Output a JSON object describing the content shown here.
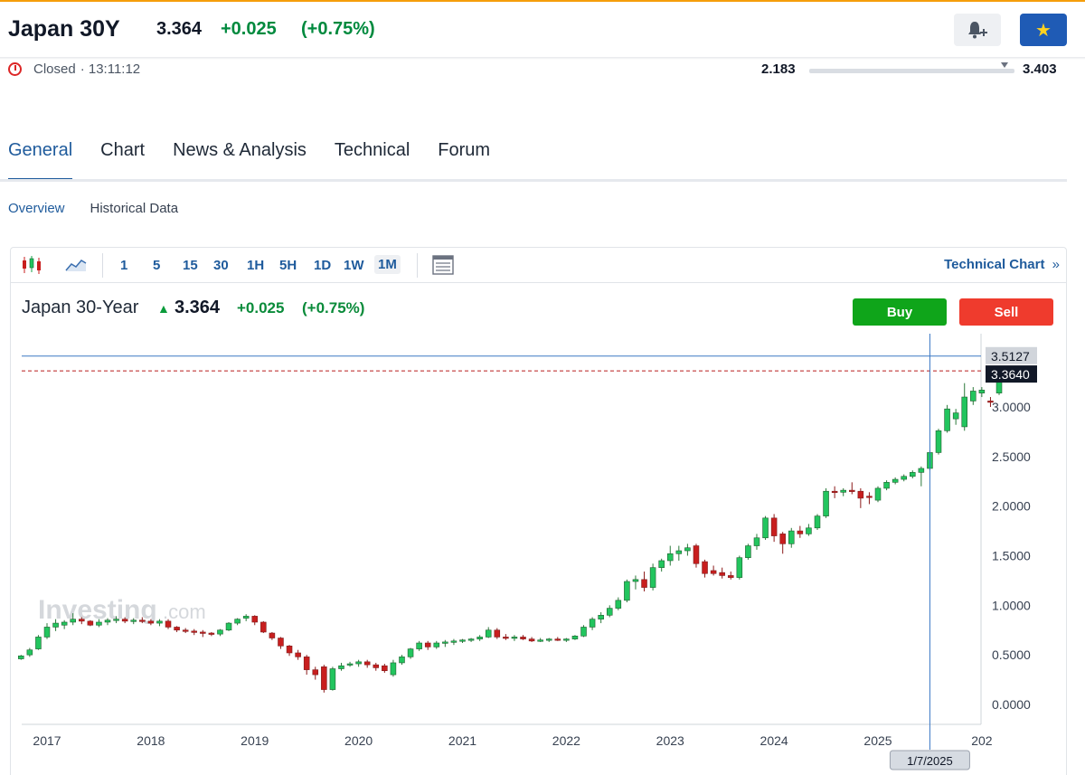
{
  "instrument": {
    "title": "Japan 30Y",
    "price": "3.364",
    "change": "+0.025",
    "change_pct": "(+0.75%)",
    "status": "Closed",
    "time": "· 13:11:12",
    "range_low": "2.183",
    "range_high": "3.403",
    "range_position": 0.95,
    "accent_color": "#1f5b9c",
    "positive_color": "#008a3e"
  },
  "header_buttons": {
    "alert_icon": "bell-plus-icon",
    "watchlist_icon": "star-icon"
  },
  "tabs": [
    {
      "label": "General",
      "active": true
    },
    {
      "label": "Chart",
      "active": false
    },
    {
      "label": "News & Analysis",
      "active": false
    },
    {
      "label": "Technical",
      "active": false
    },
    {
      "label": "Forum",
      "active": false
    }
  ],
  "subtabs": [
    {
      "label": "Overview",
      "active": true
    },
    {
      "label": "Historical Data",
      "active": false
    }
  ],
  "toolbar": {
    "intervals": [
      "1",
      "5",
      "15",
      "30",
      "1H",
      "5H",
      "1D",
      "1W",
      "1M"
    ],
    "active_interval": "1M",
    "tech_link": "Technical Chart",
    "tech_link_chevron": "»"
  },
  "chart_header": {
    "name": "Japan 30-Year",
    "arrow": "▲",
    "price": "3.364",
    "change": "+0.025",
    "change_pct": "(+0.75%)",
    "buy_label": "Buy",
    "sell_label": "Sell"
  },
  "chart_data": {
    "type": "candlestick",
    "interval": "1M",
    "watermark": "Investing.com",
    "x_ticks": [
      "2017",
      "2018",
      "2019",
      "2020",
      "2021",
      "2022",
      "2023",
      "2024",
      "2025",
      "202"
    ],
    "y_ticks": [
      "0.0000",
      "0.5000",
      "1.0000",
      "1.5000",
      "2.0000",
      "2.5000",
      "3.0000"
    ],
    "ylim": [
      -0.2,
      3.55
    ],
    "crosshair_value": "3.5127",
    "last_price_label": "3.3640",
    "last_price": 3.364,
    "crosshair_date": "1/7/2025",
    "up_color": "#22c55e",
    "down_color": "#c81e1e",
    "start": "2016-10",
    "ohlc": [
      [
        0.46,
        0.5,
        0.45,
        0.49
      ],
      [
        0.5,
        0.57,
        0.48,
        0.55
      ],
      [
        0.56,
        0.7,
        0.55,
        0.68
      ],
      [
        0.68,
        0.82,
        0.66,
        0.78
      ],
      [
        0.78,
        0.86,
        0.74,
        0.82
      ],
      [
        0.8,
        0.85,
        0.76,
        0.83
      ],
      [
        0.83,
        0.92,
        0.8,
        0.86
      ],
      [
        0.86,
        0.88,
        0.81,
        0.84
      ],
      [
        0.84,
        0.85,
        0.79,
        0.8
      ],
      [
        0.8,
        0.86,
        0.78,
        0.83
      ],
      [
        0.83,
        0.87,
        0.8,
        0.85
      ],
      [
        0.85,
        0.89,
        0.82,
        0.86
      ],
      [
        0.86,
        0.88,
        0.82,
        0.84
      ],
      [
        0.84,
        0.87,
        0.81,
        0.85
      ],
      [
        0.85,
        0.88,
        0.82,
        0.84
      ],
      [
        0.84,
        0.86,
        0.8,
        0.82
      ],
      [
        0.82,
        0.86,
        0.79,
        0.84
      ],
      [
        0.84,
        0.86,
        0.76,
        0.78
      ],
      [
        0.78,
        0.79,
        0.73,
        0.75
      ],
      [
        0.75,
        0.77,
        0.72,
        0.74
      ],
      [
        0.74,
        0.76,
        0.7,
        0.73
      ],
      [
        0.73,
        0.75,
        0.68,
        0.72
      ],
      [
        0.72,
        0.73,
        0.69,
        0.71
      ],
      [
        0.71,
        0.76,
        0.69,
        0.75
      ],
      [
        0.75,
        0.83,
        0.74,
        0.82
      ],
      [
        0.82,
        0.87,
        0.8,
        0.86
      ],
      [
        0.87,
        0.91,
        0.84,
        0.89
      ],
      [
        0.89,
        0.9,
        0.8,
        0.83
      ],
      [
        0.83,
        0.84,
        0.72,
        0.73
      ],
      [
        0.72,
        0.73,
        0.65,
        0.67
      ],
      [
        0.67,
        0.68,
        0.56,
        0.59
      ],
      [
        0.59,
        0.6,
        0.49,
        0.52
      ],
      [
        0.52,
        0.55,
        0.45,
        0.48
      ],
      [
        0.48,
        0.5,
        0.3,
        0.35
      ],
      [
        0.35,
        0.38,
        0.25,
        0.3
      ],
      [
        0.38,
        0.4,
        0.12,
        0.15
      ],
      [
        0.15,
        0.38,
        0.14,
        0.36
      ],
      [
        0.36,
        0.42,
        0.34,
        0.39
      ],
      [
        0.4,
        0.43,
        0.38,
        0.41
      ],
      [
        0.41,
        0.45,
        0.38,
        0.43
      ],
      [
        0.43,
        0.45,
        0.37,
        0.4
      ],
      [
        0.4,
        0.42,
        0.34,
        0.37
      ],
      [
        0.39,
        0.41,
        0.32,
        0.34
      ],
      [
        0.3,
        0.45,
        0.28,
        0.42
      ],
      [
        0.42,
        0.5,
        0.4,
        0.48
      ],
      [
        0.48,
        0.57,
        0.46,
        0.56
      ],
      [
        0.56,
        0.64,
        0.54,
        0.62
      ],
      [
        0.62,
        0.64,
        0.55,
        0.58
      ],
      [
        0.58,
        0.64,
        0.56,
        0.62
      ],
      [
        0.62,
        0.65,
        0.58,
        0.63
      ],
      [
        0.63,
        0.66,
        0.6,
        0.64
      ],
      [
        0.64,
        0.66,
        0.62,
        0.65
      ],
      [
        0.65,
        0.67,
        0.63,
        0.66
      ],
      [
        0.66,
        0.7,
        0.64,
        0.68
      ],
      [
        0.68,
        0.78,
        0.67,
        0.75
      ],
      [
        0.75,
        0.77,
        0.66,
        0.68
      ],
      [
        0.68,
        0.71,
        0.65,
        0.67
      ],
      [
        0.67,
        0.7,
        0.64,
        0.68
      ],
      [
        0.68,
        0.7,
        0.65,
        0.66
      ],
      [
        0.66,
        0.68,
        0.63,
        0.64
      ],
      [
        0.65,
        0.67,
        0.63,
        0.65
      ],
      [
        0.65,
        0.67,
        0.63,
        0.66
      ],
      [
        0.66,
        0.68,
        0.64,
        0.65
      ],
      [
        0.65,
        0.67,
        0.63,
        0.66
      ],
      [
        0.66,
        0.7,
        0.65,
        0.69
      ],
      [
        0.69,
        0.8,
        0.68,
        0.78
      ],
      [
        0.78,
        0.88,
        0.75,
        0.86
      ],
      [
        0.86,
        0.93,
        0.82,
        0.9
      ],
      [
        0.9,
        1.0,
        0.88,
        0.97
      ],
      [
        0.97,
        1.08,
        0.95,
        1.05
      ],
      [
        1.05,
        1.26,
        1.03,
        1.24
      ],
      [
        1.24,
        1.3,
        1.16,
        1.26
      ],
      [
        1.26,
        1.34,
        1.14,
        1.18
      ],
      [
        1.18,
        1.42,
        1.15,
        1.38
      ],
      [
        1.38,
        1.47,
        1.34,
        1.45
      ],
      [
        1.45,
        1.6,
        1.4,
        1.52
      ],
      [
        1.52,
        1.6,
        1.45,
        1.55
      ],
      [
        1.55,
        1.62,
        1.5,
        1.58
      ],
      [
        1.6,
        1.62,
        1.38,
        1.42
      ],
      [
        1.44,
        1.46,
        1.28,
        1.32
      ],
      [
        1.35,
        1.4,
        1.3,
        1.32
      ],
      [
        1.33,
        1.38,
        1.27,
        1.3
      ],
      [
        1.3,
        1.34,
        1.26,
        1.28
      ],
      [
        1.28,
        1.5,
        1.26,
        1.48
      ],
      [
        1.48,
        1.62,
        1.46,
        1.6
      ],
      [
        1.6,
        1.72,
        1.56,
        1.68
      ],
      [
        1.68,
        1.9,
        1.66,
        1.88
      ],
      [
        1.88,
        1.92,
        1.64,
        1.7
      ],
      [
        1.72,
        1.74,
        1.52,
        1.62
      ],
      [
        1.62,
        1.78,
        1.58,
        1.75
      ],
      [
        1.75,
        1.8,
        1.68,
        1.72
      ],
      [
        1.72,
        1.82,
        1.7,
        1.78
      ],
      [
        1.78,
        1.92,
        1.76,
        1.9
      ],
      [
        1.9,
        2.18,
        1.88,
        2.15
      ],
      [
        2.15,
        2.2,
        2.08,
        2.14
      ],
      [
        2.14,
        2.18,
        2.1,
        2.16
      ],
      [
        2.16,
        2.24,
        2.12,
        2.15
      ],
      [
        2.15,
        2.18,
        1.98,
        2.08
      ],
      [
        2.1,
        2.14,
        2.02,
        2.09
      ],
      [
        2.06,
        2.2,
        2.04,
        2.18
      ],
      [
        2.18,
        2.26,
        2.16,
        2.24
      ],
      [
        2.24,
        2.29,
        2.22,
        2.27
      ],
      [
        2.27,
        2.32,
        2.25,
        2.3
      ],
      [
        2.3,
        2.36,
        2.28,
        2.34
      ],
      [
        2.34,
        2.4,
        2.2,
        2.38
      ],
      [
        2.38,
        2.56,
        2.36,
        2.54
      ],
      [
        2.54,
        2.78,
        2.52,
        2.76
      ],
      [
        2.76,
        3.02,
        2.74,
        2.98
      ],
      [
        2.88,
        2.98,
        2.82,
        2.94
      ],
      [
        2.8,
        3.24,
        2.76,
        3.1
      ],
      [
        3.06,
        3.2,
        3.02,
        3.16
      ],
      [
        3.14,
        3.2,
        3.1,
        3.17
      ],
      [
        3.06,
        3.1,
        3.0,
        3.05
      ],
      [
        3.14,
        3.4,
        3.12,
        3.364
      ]
    ]
  }
}
